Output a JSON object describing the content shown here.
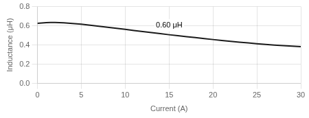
{
  "chart_data": {
    "type": "line",
    "xlabel": "Current (A)",
    "ylabel": "Inductance (μH)",
    "xlim": [
      0,
      30
    ],
    "ylim": [
      0,
      0.8
    ],
    "xticks": [
      0,
      5,
      10,
      15,
      20,
      25,
      30
    ],
    "yticks": [
      {
        "value": 0,
        "label": "0.0"
      },
      0.2,
      0.4,
      0.6,
      0.8
    ],
    "x": [
      0,
      0.5,
      1,
      1.5,
      2,
      2.5,
      3,
      3.5,
      4,
      5,
      6,
      7,
      8,
      9,
      10,
      11,
      12,
      13,
      14,
      15,
      16,
      17,
      18,
      19,
      20,
      21,
      22,
      23,
      24,
      25,
      26,
      27,
      28,
      29,
      30
    ],
    "values": [
      0.625,
      0.63,
      0.633,
      0.634,
      0.634,
      0.633,
      0.631,
      0.628,
      0.624,
      0.616,
      0.606,
      0.596,
      0.585,
      0.574,
      0.563,
      0.551,
      0.54,
      0.529,
      0.518,
      0.507,
      0.497,
      0.487,
      0.477,
      0.467,
      0.457,
      0.448,
      0.439,
      0.43,
      0.422,
      0.414,
      0.406,
      0.399,
      0.393,
      0.388,
      0.383
    ],
    "color": "#1a1a1a",
    "grid": true,
    "annotations": [
      {
        "text": "0.60 μH",
        "x": 13.5,
        "y": 0.605
      }
    ]
  }
}
